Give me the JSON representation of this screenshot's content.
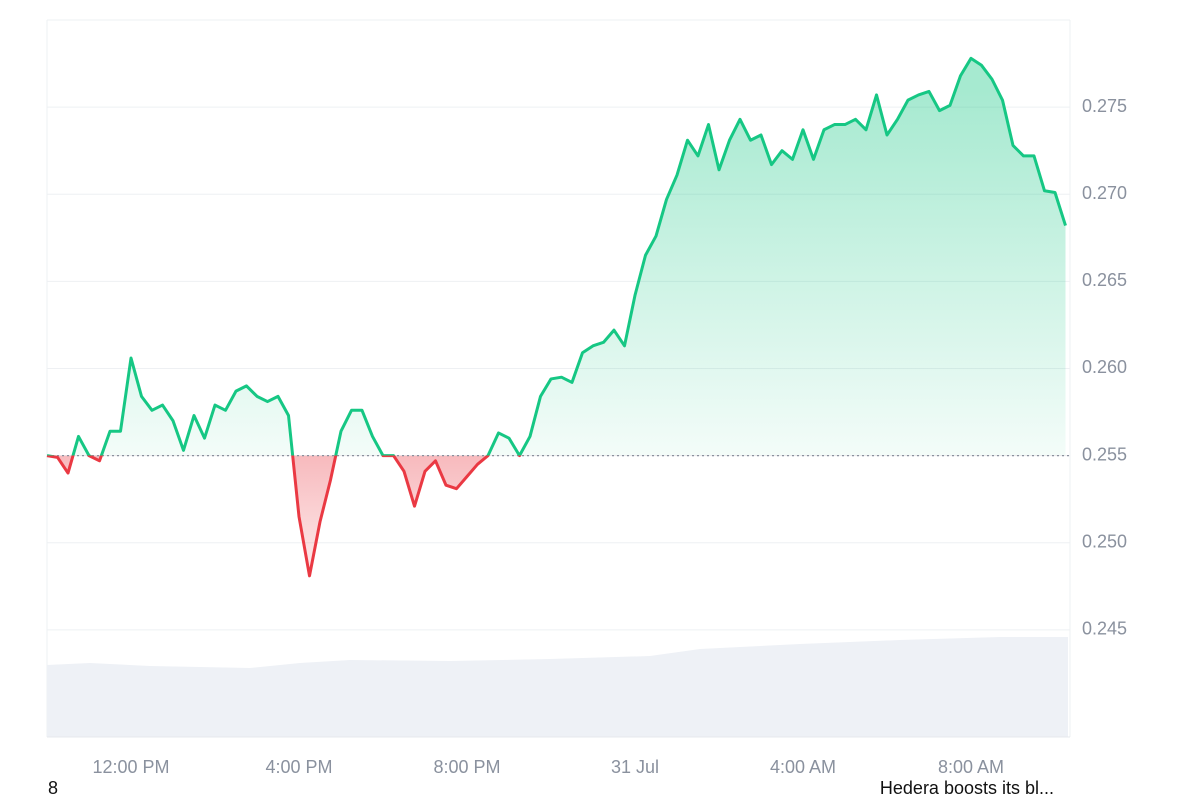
{
  "chart_data": {
    "type": "line",
    "x": [
      "10:00 AM",
      "10:15 AM",
      "10:30 AM",
      "10:45 AM",
      "11:00 AM",
      "11:15 AM",
      "11:30 AM",
      "11:45 AM",
      "12:00 PM",
      "12:15 PM",
      "12:30 PM",
      "12:45 PM",
      "1:00 PM",
      "1:15 PM",
      "1:30 PM",
      "1:45 PM",
      "2:00 PM",
      "2:15 PM",
      "2:30 PM",
      "2:45 PM",
      "3:00 PM",
      "3:15 PM",
      "3:30 PM",
      "3:45 PM",
      "4:00 PM",
      "4:15 PM",
      "4:30 PM",
      "4:45 PM",
      "5:00 PM",
      "5:15 PM",
      "5:30 PM",
      "5:45 PM",
      "6:00 PM",
      "6:15 PM",
      "6:30 PM",
      "6:45 PM",
      "7:00 PM",
      "7:15 PM",
      "7:30 PM",
      "7:45 PM",
      "8:00 PM",
      "8:15 PM",
      "8:30 PM",
      "8:45 PM",
      "9:00 PM",
      "9:15 PM",
      "9:30 PM",
      "9:45 PM",
      "10:00 PM",
      "10:15 PM",
      "10:30 PM",
      "10:45 PM",
      "11:00 PM",
      "11:15 PM",
      "11:30 PM",
      "11:45 PM",
      "12:00 AM",
      "12:15 AM",
      "12:30 AM",
      "12:45 AM",
      "1:00 AM",
      "1:15 AM",
      "1:30 AM",
      "1:45 AM",
      "2:00 AM",
      "2:15 AM",
      "2:30 AM",
      "2:45 AM",
      "3:00 AM",
      "3:15 AM",
      "3:30 AM",
      "3:45 AM",
      "4:00 AM",
      "4:15 AM",
      "4:30 AM",
      "4:45 AM",
      "5:00 AM",
      "5:15 AM",
      "5:30 AM",
      "5:45 AM",
      "6:00 AM",
      "6:15 AM",
      "6:30 AM",
      "6:45 AM",
      "7:00 AM",
      "7:15 AM",
      "7:30 AM",
      "7:45 AM",
      "8:00 AM",
      "8:15 AM",
      "8:30 AM",
      "8:45 AM",
      "9:00 AM",
      "9:15 AM",
      "9:30 AM",
      "9:45 AM",
      "10:00 AM",
      "10:15 AM"
    ],
    "series": [
      {
        "values": [
          0.255,
          0.2549,
          0.254,
          0.2561,
          0.255,
          0.2547,
          0.2564,
          0.2564,
          0.2606,
          0.2584,
          0.2576,
          0.2579,
          0.257,
          0.2553,
          0.2573,
          0.256,
          0.2579,
          0.2576,
          0.2587,
          0.259,
          0.2584,
          0.2581,
          0.2584,
          0.2573,
          0.2515,
          0.2481,
          0.2512,
          0.2536,
          0.2564,
          0.2576,
          0.2576,
          0.2561,
          0.255,
          0.255,
          0.2541,
          0.2521,
          0.2541,
          0.2547,
          0.2533,
          0.2531,
          0.2538,
          0.2545,
          0.255,
          0.2563,
          0.256,
          0.255,
          0.2561,
          0.2584,
          0.2594,
          0.2595,
          0.2592,
          0.2609,
          0.2613,
          0.2615,
          0.2622,
          0.2613,
          0.2642,
          0.2665,
          0.2676,
          0.2697,
          0.2711,
          0.2731,
          0.2722,
          0.274,
          0.2714,
          0.2731,
          0.2743,
          0.2731,
          0.2734,
          0.2717,
          0.2725,
          0.272,
          0.2737,
          0.272,
          0.2737,
          0.274,
          0.274,
          0.2743,
          0.2737,
          0.2757,
          0.2734,
          0.2743,
          0.2754,
          0.2757,
          0.2759,
          0.2748,
          0.2751,
          0.2768,
          0.2778,
          0.2774,
          0.2766,
          0.2754,
          0.2728,
          0.2722,
          0.2722,
          0.2702,
          0.2701,
          0.2682
        ]
      }
    ],
    "baseline": 0.255,
    "up_color": "#16c784",
    "down_color": "#ea3943",
    "ylim": [
      0.23885,
      0.28
    ],
    "yticks": [
      0.245,
      {
        "value": 0.25,
        "label": "0.250"
      },
      0.255,
      {
        "value": 0.26,
        "label": "0.260"
      },
      0.265,
      {
        "value": 0.27,
        "label": "0.270"
      },
      0.275
    ],
    "xticks": [
      "12:00 PM",
      "4:00 PM",
      "8:00 PM",
      {
        "value": "12:00 AM",
        "label": "31 Jul"
      },
      "4:00 AM",
      "8:00 AM"
    ],
    "grid": true,
    "footer_left": "8",
    "news_headline": "Hedera boosts its bl..."
  }
}
